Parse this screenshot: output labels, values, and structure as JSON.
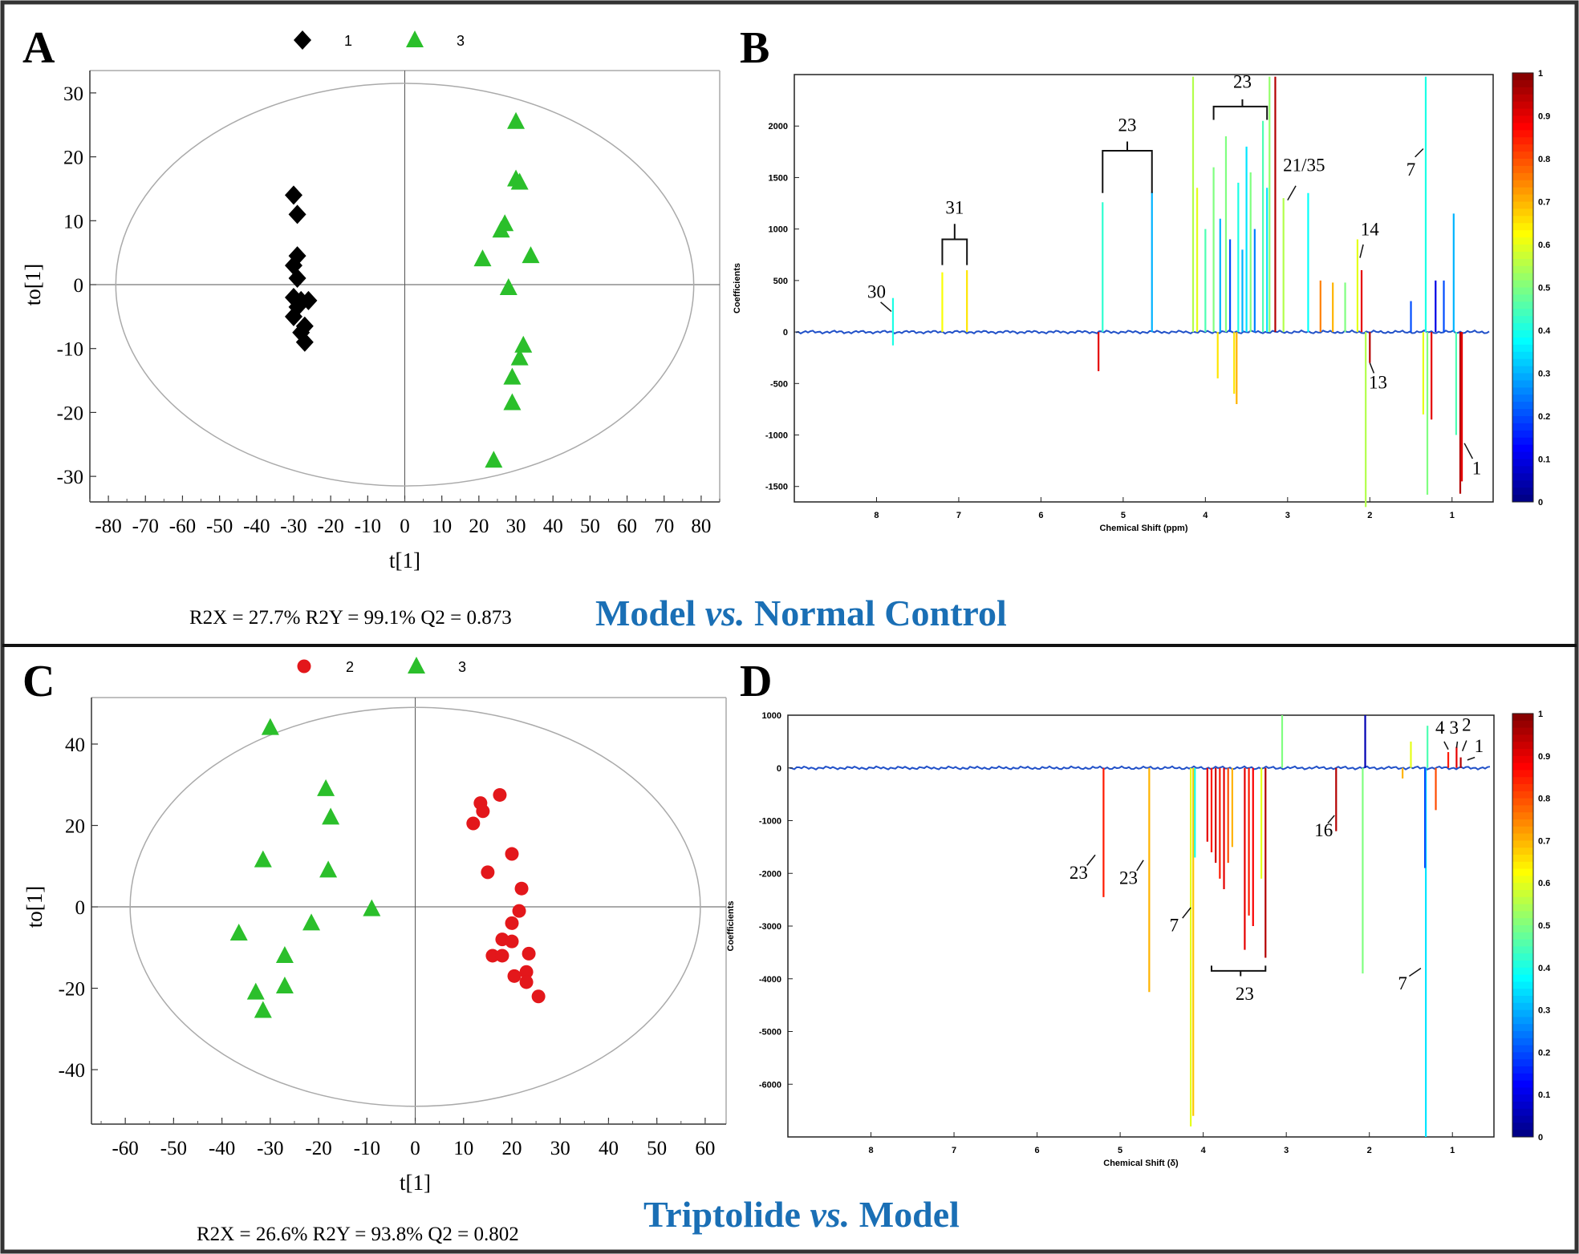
{
  "figure": {
    "top_title": "Model vs. Normal Control",
    "top_title_parts": [
      "Model ",
      "vs.",
      " Normal Control"
    ],
    "bottom_title": "Triptolide vs. Model",
    "bottom_title_parts": [
      "Triptolide ",
      "vs.",
      " Model"
    ],
    "accent_color": "#1a6fb5"
  },
  "chart_data": [
    {
      "panel": "A",
      "type": "scatter",
      "subtype": "OPLS-DA score plot",
      "xlabel": "t[1]",
      "ylabel": "to[1]",
      "xlim": [
        -85,
        85
      ],
      "ylim": [
        -34,
        34
      ],
      "xticks": [
        -80,
        -70,
        -60,
        -50,
        -40,
        -30,
        -20,
        -10,
        0,
        10,
        20,
        30,
        40,
        50,
        60,
        70,
        80
      ],
      "yticks": [
        -30,
        -20,
        -10,
        0,
        10,
        20,
        30
      ],
      "ellipse": {
        "rx": 78,
        "ry": 31.5
      },
      "stats": "R2X = 27.7% R2Y = 99.1% Q2 = 0.873",
      "legend": [
        {
          "label": "1",
          "marker": "diamond",
          "color": "#000000"
        },
        {
          "label": "3",
          "marker": "triangle",
          "color": "#2bbf2b"
        }
      ],
      "series": [
        {
          "name": "1",
          "marker": "diamond",
          "color": "#000000",
          "points": [
            [
              -30,
              14
            ],
            [
              -29,
              11
            ],
            [
              -29,
              4.5
            ],
            [
              -30,
              3
            ],
            [
              -29,
              1
            ],
            [
              -30,
              -2
            ],
            [
              -28,
              -2.5
            ],
            [
              -26,
              -2.5
            ],
            [
              -29,
              -3.5
            ],
            [
              -30,
              -5
            ],
            [
              -27,
              -6.5
            ],
            [
              -28,
              -7.5
            ],
            [
              -27,
              -9
            ]
          ]
        },
        {
          "name": "3",
          "marker": "triangle",
          "color": "#2bbf2b",
          "points": [
            [
              30,
              25.5
            ],
            [
              30,
              16.5
            ],
            [
              31,
              16
            ],
            [
              26,
              8.5
            ],
            [
              27,
              9.5
            ],
            [
              21,
              4
            ],
            [
              34,
              4.5
            ],
            [
              28,
              -0.5
            ],
            [
              32,
              -9.5
            ],
            [
              31,
              -11.5
            ],
            [
              29,
              -14.5
            ],
            [
              29,
              -18.5
            ],
            [
              24,
              -27.5
            ]
          ]
        }
      ]
    },
    {
      "panel": "B",
      "type": "line",
      "subtype": "coefficient loading plot",
      "xlabel": "Chemical Shift (ppm)",
      "ylabel": "Coefficients",
      "xlim": [
        9,
        0.5
      ],
      "ylim": [
        -1650,
        2500
      ],
      "xticks": [
        8,
        7,
        6,
        5,
        4,
        3,
        2,
        1
      ],
      "yticks": [
        -1500,
        -1000,
        -500,
        0,
        500,
        1000,
        1500,
        2000
      ],
      "colorbar_ticks": [
        "0",
        "0.1",
        "0.2",
        "0.3",
        "0.4",
        "0.5",
        "0.6",
        "0.7",
        "0.8",
        "0.9",
        "1"
      ],
      "peaks": [
        {
          "x": 7.8,
          "y": 330,
          "c": 0.4
        },
        {
          "x": 7.8,
          "y": -130,
          "c": 0.4
        },
        {
          "x": 7.2,
          "y": 580,
          "c": 0.62
        },
        {
          "x": 6.9,
          "y": 600,
          "c": 0.65
        },
        {
          "x": 5.25,
          "y": 1260,
          "c": 0.42
        },
        {
          "x": 4.65,
          "y": 1360,
          "c": 0.3
        },
        {
          "x": 5.3,
          "y": -380,
          "c": 0.9
        },
        {
          "x": 4.15,
          "y": 2480,
          "c": 0.55
        },
        {
          "x": 4.1,
          "y": 1400,
          "c": 0.6
        },
        {
          "x": 4.0,
          "y": 1000,
          "c": 0.45
        },
        {
          "x": 3.9,
          "y": 1600,
          "c": 0.5
        },
        {
          "x": 3.82,
          "y": 1100,
          "c": 0.3
        },
        {
          "x": 3.75,
          "y": 1900,
          "c": 0.5
        },
        {
          "x": 3.7,
          "y": 900,
          "c": 0.2
        },
        {
          "x": 3.65,
          "y": -600,
          "c": 0.65
        },
        {
          "x": 3.6,
          "y": 1450,
          "c": 0.4
        },
        {
          "x": 3.55,
          "y": 800,
          "c": 0.3
        },
        {
          "x": 3.5,
          "y": 1800,
          "c": 0.35
        },
        {
          "x": 3.45,
          "y": 1550,
          "c": 0.5
        },
        {
          "x": 3.4,
          "y": 1000,
          "c": 0.25
        },
        {
          "x": 3.3,
          "y": 2050,
          "c": 0.45
        },
        {
          "x": 3.25,
          "y": 1400,
          "c": 0.35
        },
        {
          "x": 3.22,
          "y": 2480,
          "c": 0.52
        },
        {
          "x": 3.15,
          "y": 2480,
          "c": 0.95
        },
        {
          "x": 3.05,
          "y": 1300,
          "c": 0.55
        },
        {
          "x": 3.62,
          "y": -700,
          "c": 0.7
        },
        {
          "x": 3.85,
          "y": -450,
          "c": 0.65
        },
        {
          "x": 2.75,
          "y": 1350,
          "c": 0.38
        },
        {
          "x": 2.6,
          "y": 500,
          "c": 0.75
        },
        {
          "x": 2.45,
          "y": 480,
          "c": 0.7
        },
        {
          "x": 2.3,
          "y": 480,
          "c": 0.5
        },
        {
          "x": 2.15,
          "y": 900,
          "c": 0.6
        },
        {
          "x": 2.1,
          "y": 600,
          "c": 0.9
        },
        {
          "x": 2.05,
          "y": -1700,
          "c": 0.55
        },
        {
          "x": 2.0,
          "y": -300,
          "c": 0.95
        },
        {
          "x": 1.5,
          "y": 300,
          "c": 0.2
        },
        {
          "x": 1.35,
          "y": -800,
          "c": 0.6
        },
        {
          "x": 1.32,
          "y": 2480,
          "c": 0.4
        },
        {
          "x": 1.3,
          "y": -1580,
          "c": 0.5
        },
        {
          "x": 1.25,
          "y": -850,
          "c": 0.9
        },
        {
          "x": 1.2,
          "y": 500,
          "c": 0.1
        },
        {
          "x": 1.1,
          "y": 500,
          "c": 0.2
        },
        {
          "x": 0.98,
          "y": 1150,
          "c": 0.3
        },
        {
          "x": 0.95,
          "y": -1000,
          "c": 0.45
        },
        {
          "x": 0.9,
          "y": -1570,
          "c": 0.95
        },
        {
          "x": 0.88,
          "y": -1450,
          "c": 0.9
        }
      ],
      "annotations": [
        {
          "text": "30",
          "x": 8.0,
          "y": 330
        },
        {
          "text": "31",
          "x": 7.05,
          "y": 1150
        },
        {
          "text": "23",
          "x": 4.95,
          "y": 1950
        },
        {
          "text": "23",
          "x": 3.55,
          "y": 2370
        },
        {
          "text": "21/35",
          "x": 2.8,
          "y": 1560
        },
        {
          "text": "14",
          "x": 2.0,
          "y": 940
        },
        {
          "text": "13",
          "x": 1.9,
          "y": -550
        },
        {
          "text": "7",
          "x": 1.5,
          "y": 1520
        },
        {
          "text": "1",
          "x": 0.7,
          "y": -1380
        }
      ]
    },
    {
      "panel": "C",
      "type": "scatter",
      "subtype": "OPLS-DA score plot",
      "xlabel": "t[1]",
      "ylabel": "to[1]",
      "xlim": [
        -67,
        64
      ],
      "ylim": [
        -52,
        53
      ],
      "xticks": [
        -60,
        -50,
        -40,
        -30,
        -20,
        -10,
        0,
        10,
        20,
        30,
        40,
        50,
        60
      ],
      "yticks": [
        -40,
        -20,
        0,
        20,
        40
      ],
      "ellipse": {
        "rx": 59,
        "ry": 49
      },
      "stats": "R2X = 26.6% R2Y = 93.8% Q2 = 0.802",
      "legend": [
        {
          "label": "2",
          "marker": "circle",
          "color": "#e3171b"
        },
        {
          "label": "3",
          "marker": "triangle",
          "color": "#2bbf2b"
        }
      ],
      "series": [
        {
          "name": "2",
          "marker": "circle",
          "color": "#e3171b",
          "points": [
            [
              13.5,
              25.5
            ],
            [
              14,
              23.5
            ],
            [
              17.5,
              27.5
            ],
            [
              12,
              20.5
            ],
            [
              20,
              13
            ],
            [
              15,
              8.5
            ],
            [
              22,
              4.5
            ],
            [
              21.5,
              -1
            ],
            [
              20,
              -4
            ],
            [
              18,
              -8
            ],
            [
              20,
              -8.5
            ],
            [
              16,
              -12
            ],
            [
              18,
              -12
            ],
            [
              23.5,
              -11.5
            ],
            [
              23,
              -16
            ],
            [
              20.5,
              -17
            ],
            [
              23,
              -18.5
            ],
            [
              25.5,
              -22
            ]
          ]
        },
        {
          "name": "3",
          "marker": "triangle",
          "color": "#2bbf2b",
          "points": [
            [
              -30,
              44
            ],
            [
              -18.5,
              29
            ],
            [
              -17.5,
              22
            ],
            [
              -31.5,
              11.5
            ],
            [
              -18,
              9
            ],
            [
              -9,
              -0.5
            ],
            [
              -21.5,
              -4
            ],
            [
              -36.5,
              -6.5
            ],
            [
              -27,
              -12
            ],
            [
              -33,
              -21
            ],
            [
              -27,
              -19.5
            ],
            [
              -31.5,
              -25.5
            ]
          ]
        }
      ]
    },
    {
      "panel": "D",
      "type": "line",
      "subtype": "coefficient loading plot",
      "xlabel": "Chemical Shift (δ)",
      "ylabel": "Coefficients",
      "xlim": [
        9,
        0.5
      ],
      "ylim": [
        -7000,
        1000
      ],
      "xticks": [
        8,
        7,
        6,
        5,
        4,
        3,
        2,
        1
      ],
      "yticks": [
        -6000,
        -5000,
        -4000,
        -3000,
        -2000,
        -1000,
        0,
        1000
      ],
      "colorbar_ticks": [
        "0",
        "0.1",
        "0.2",
        "0.3",
        "0.4",
        "0.5",
        "0.6",
        "0.7",
        "0.8",
        "0.9",
        "1"
      ],
      "peaks": [
        {
          "x": 5.2,
          "y": -2450,
          "c": 0.85
        },
        {
          "x": 4.65,
          "y": -4250,
          "c": 0.7
        },
        {
          "x": 4.15,
          "y": -6800,
          "c": 0.6
        },
        {
          "x": 4.12,
          "y": -6600,
          "c": 0.68
        },
        {
          "x": 4.1,
          "y": -1700,
          "c": 0.4
        },
        {
          "x": 3.95,
          "y": -1400,
          "c": 0.9
        },
        {
          "x": 3.9,
          "y": -1600,
          "c": 0.85
        },
        {
          "x": 3.85,
          "y": -1800,
          "c": 0.92
        },
        {
          "x": 3.8,
          "y": -2100,
          "c": 0.85
        },
        {
          "x": 3.75,
          "y": -2300,
          "c": 0.9
        },
        {
          "x": 3.7,
          "y": -1800,
          "c": 0.8
        },
        {
          "x": 3.65,
          "y": -1500,
          "c": 0.7
        },
        {
          "x": 3.5,
          "y": -3450,
          "c": 0.9
        },
        {
          "x": 3.45,
          "y": -2800,
          "c": 0.85
        },
        {
          "x": 3.4,
          "y": -3000,
          "c": 0.88
        },
        {
          "x": 3.3,
          "y": -2100,
          "c": 0.6
        },
        {
          "x": 3.25,
          "y": -3600,
          "c": 0.95
        },
        {
          "x": 3.05,
          "y": 1000,
          "c": 0.5
        },
        {
          "x": 2.4,
          "y": -1200,
          "c": 0.95
        },
        {
          "x": 2.08,
          "y": -3900,
          "c": 0.5
        },
        {
          "x": 2.05,
          "y": 1000,
          "c": 0.05
        },
        {
          "x": 1.6,
          "y": -200,
          "c": 0.7
        },
        {
          "x": 1.5,
          "y": 500,
          "c": 0.6
        },
        {
          "x": 1.32,
          "y": -7000,
          "c": 0.35
        },
        {
          "x": 1.33,
          "y": -1900,
          "c": 0.2
        },
        {
          "x": 1.2,
          "y": -800,
          "c": 0.8
        },
        {
          "x": 1.3,
          "y": 800,
          "c": 0.45
        },
        {
          "x": 1.05,
          "y": 300,
          "c": 0.85
        },
        {
          "x": 0.95,
          "y": 400,
          "c": 0.9
        },
        {
          "x": 0.9,
          "y": 200,
          "c": 0.95
        }
      ],
      "annotations": [
        {
          "text": "23",
          "x": 5.5,
          "y": -2100
        },
        {
          "text": "23",
          "x": 4.9,
          "y": -2200
        },
        {
          "text": "7",
          "x": 4.35,
          "y": -3100
        },
        {
          "text": "23",
          "x": 3.5,
          "y": -4400
        },
        {
          "text": "16",
          "x": 2.55,
          "y": -1300
        },
        {
          "text": "7",
          "x": 1.6,
          "y": -4200
        },
        {
          "text": "4",
          "x": 1.15,
          "y": 650
        },
        {
          "text": "3",
          "x": 0.98,
          "y": 650
        },
        {
          "text": "2",
          "x": 0.83,
          "y": 700
        },
        {
          "text": "1",
          "x": 0.68,
          "y": 300
        }
      ]
    }
  ]
}
